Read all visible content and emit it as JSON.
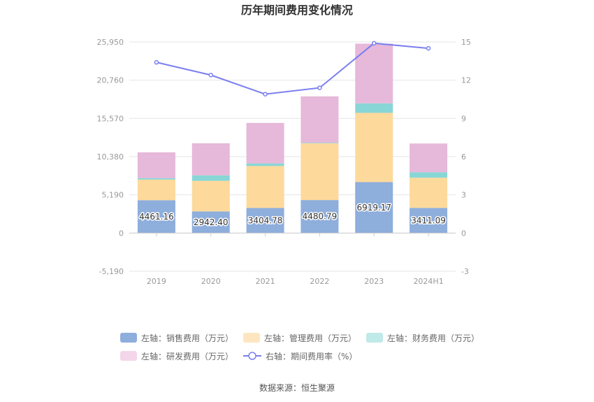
{
  "chart_data": {
    "type": "bar",
    "title": "历年期间费用变化情况",
    "categories": [
      "2019",
      "2020",
      "2021",
      "2022",
      "2023",
      "2024H1"
    ],
    "left_axis": {
      "ticks": [
        "25,950",
        "20,760",
        "15,570",
        "10,380",
        "5,190",
        "0",
        "-5,190"
      ],
      "ylim": [
        -5190,
        25950
      ]
    },
    "right_axis": {
      "ticks": [
        "15",
        "12",
        "9",
        "6",
        "3",
        "0",
        "-3"
      ],
      "ylim": [
        -3,
        15
      ]
    },
    "series": [
      {
        "name": "左轴：销售费用（万元）",
        "axis": "left",
        "color": "#8eaedc",
        "values": [
          4461.16,
          2942.4,
          3404.78,
          4480.79,
          6919.17,
          3411.09
        ]
      },
      {
        "name": "左轴：管理费用（万元）",
        "axis": "left",
        "color": "#fdd99b",
        "values": [
          2800,
          4150,
          5700,
          7700,
          9400,
          4100
        ]
      },
      {
        "name": "左轴：财务费用（万元）",
        "axis": "left",
        "color": "#89d6d6",
        "values": [
          200,
          750,
          350,
          80,
          1300,
          750
        ]
      },
      {
        "name": "左轴：研发费用（万元）",
        "axis": "left",
        "color": "#e6b8d9",
        "values": [
          3500,
          4350,
          5500,
          6300,
          8100,
          3900
        ]
      },
      {
        "name": "右轴：期间费用率（%）",
        "axis": "right",
        "type": "line",
        "color": "#7b7ff0",
        "values": [
          13.4,
          12.4,
          10.9,
          11.4,
          14.9,
          14.5
        ]
      }
    ],
    "bar_labels": [
      "4461.16",
      "2942.40",
      "3404.78",
      "4480.79",
      "6919.17",
      "3411.09"
    ]
  },
  "legend": {
    "row1": [
      "左轴：销售费用（万元）",
      "左轴：管理费用（万元）",
      "左轴：财务费用（万元）"
    ],
    "row2": [
      "左轴：研发费用（万元）",
      "右轴：期间费用率（%）"
    ],
    "colors": [
      "#8eaedc",
      "#fde6bf",
      "#c0e9e9",
      "#f3d6ea",
      "#7b7ff0"
    ]
  },
  "source": "数据来源：恒生聚源"
}
